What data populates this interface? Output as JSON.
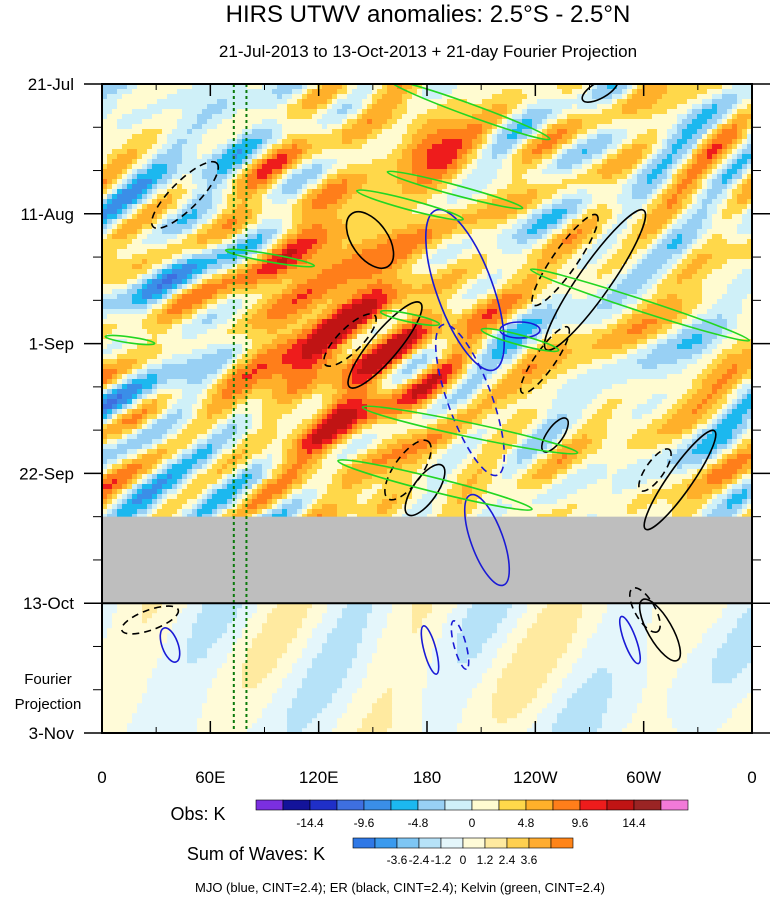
{
  "chart_data": {
    "type": "heatmap",
    "title": "HIRS UTWV anomalies: 2.5°S - 2.5°N",
    "subtitle": "21-Jul-2013 to 13-Oct-2013 + 21-day Fourier Projection",
    "x_axis": {
      "range": [
        0,
        360
      ],
      "ticks": [
        {
          "lon": 0,
          "label": "0"
        },
        {
          "lon": 60,
          "label": "60E"
        },
        {
          "lon": 120,
          "label": "120E"
        },
        {
          "lon": 180,
          "label": "180"
        },
        {
          "lon": 240,
          "label": "120W"
        },
        {
          "lon": 300,
          "label": "60W"
        },
        {
          "lon": 360,
          "label": "0"
        }
      ]
    },
    "y_axis": {
      "range_days": [
        0,
        105
      ],
      "ticks": [
        {
          "day": 0,
          "label": "21-Jul"
        },
        {
          "day": 21,
          "label": "11-Aug"
        },
        {
          "day": 42,
          "label": "1-Sep"
        },
        {
          "day": 63,
          "label": "22-Sep"
        },
        {
          "day": 84,
          "label": "13-Oct"
        },
        {
          "day": 105,
          "label": "3-Nov"
        }
      ],
      "projection_label_line1": "Fourier",
      "projection_label_line2": "Projection",
      "missing_data_band_days": [
        70,
        84
      ],
      "projection_start_day": 84
    },
    "reference_lines_lon": [
      73,
      80
    ],
    "obs_legend": {
      "label": "Obs: K",
      "colors": [
        "#7b2fe0",
        "#13139a",
        "#1f2fc8",
        "#3e6fe0",
        "#3a8ee8",
        "#1cb8ef",
        "#98d0f4",
        "#cff0f8",
        "#fffbd0",
        "#ffd84a",
        "#ffb02a",
        "#ff7e1a",
        "#ee1c1c",
        "#c01414",
        "#9a2424",
        "#f27ad8"
      ],
      "tick_labels": [
        "-14.4",
        "-9.6",
        "-4.8",
        "0",
        "4.8",
        "9.6",
        "14.4"
      ]
    },
    "waves_legend": {
      "label": "Sum of Waves: K",
      "colors": [
        "#2f78e6",
        "#3a9aee",
        "#7ec6f4",
        "#b6e2f8",
        "#e4f6fb",
        "#fffbd8",
        "#ffeaa0",
        "#ffd050",
        "#ffac30",
        "#ff8418"
      ],
      "tick_labels": [
        "-3.6",
        "-2.4",
        "-1.2",
        "0",
        "1.2",
        "2.4",
        "3.6"
      ]
    },
    "caption": "MJO (blue, CINT=2.4); ER (black, CINT=2.4); Kelvin (green, CINT=2.4)",
    "contours": {
      "mjo_color": "#1a1ad6",
      "er_color": "#000000",
      "kelvin_color": "#22d622"
    }
  }
}
